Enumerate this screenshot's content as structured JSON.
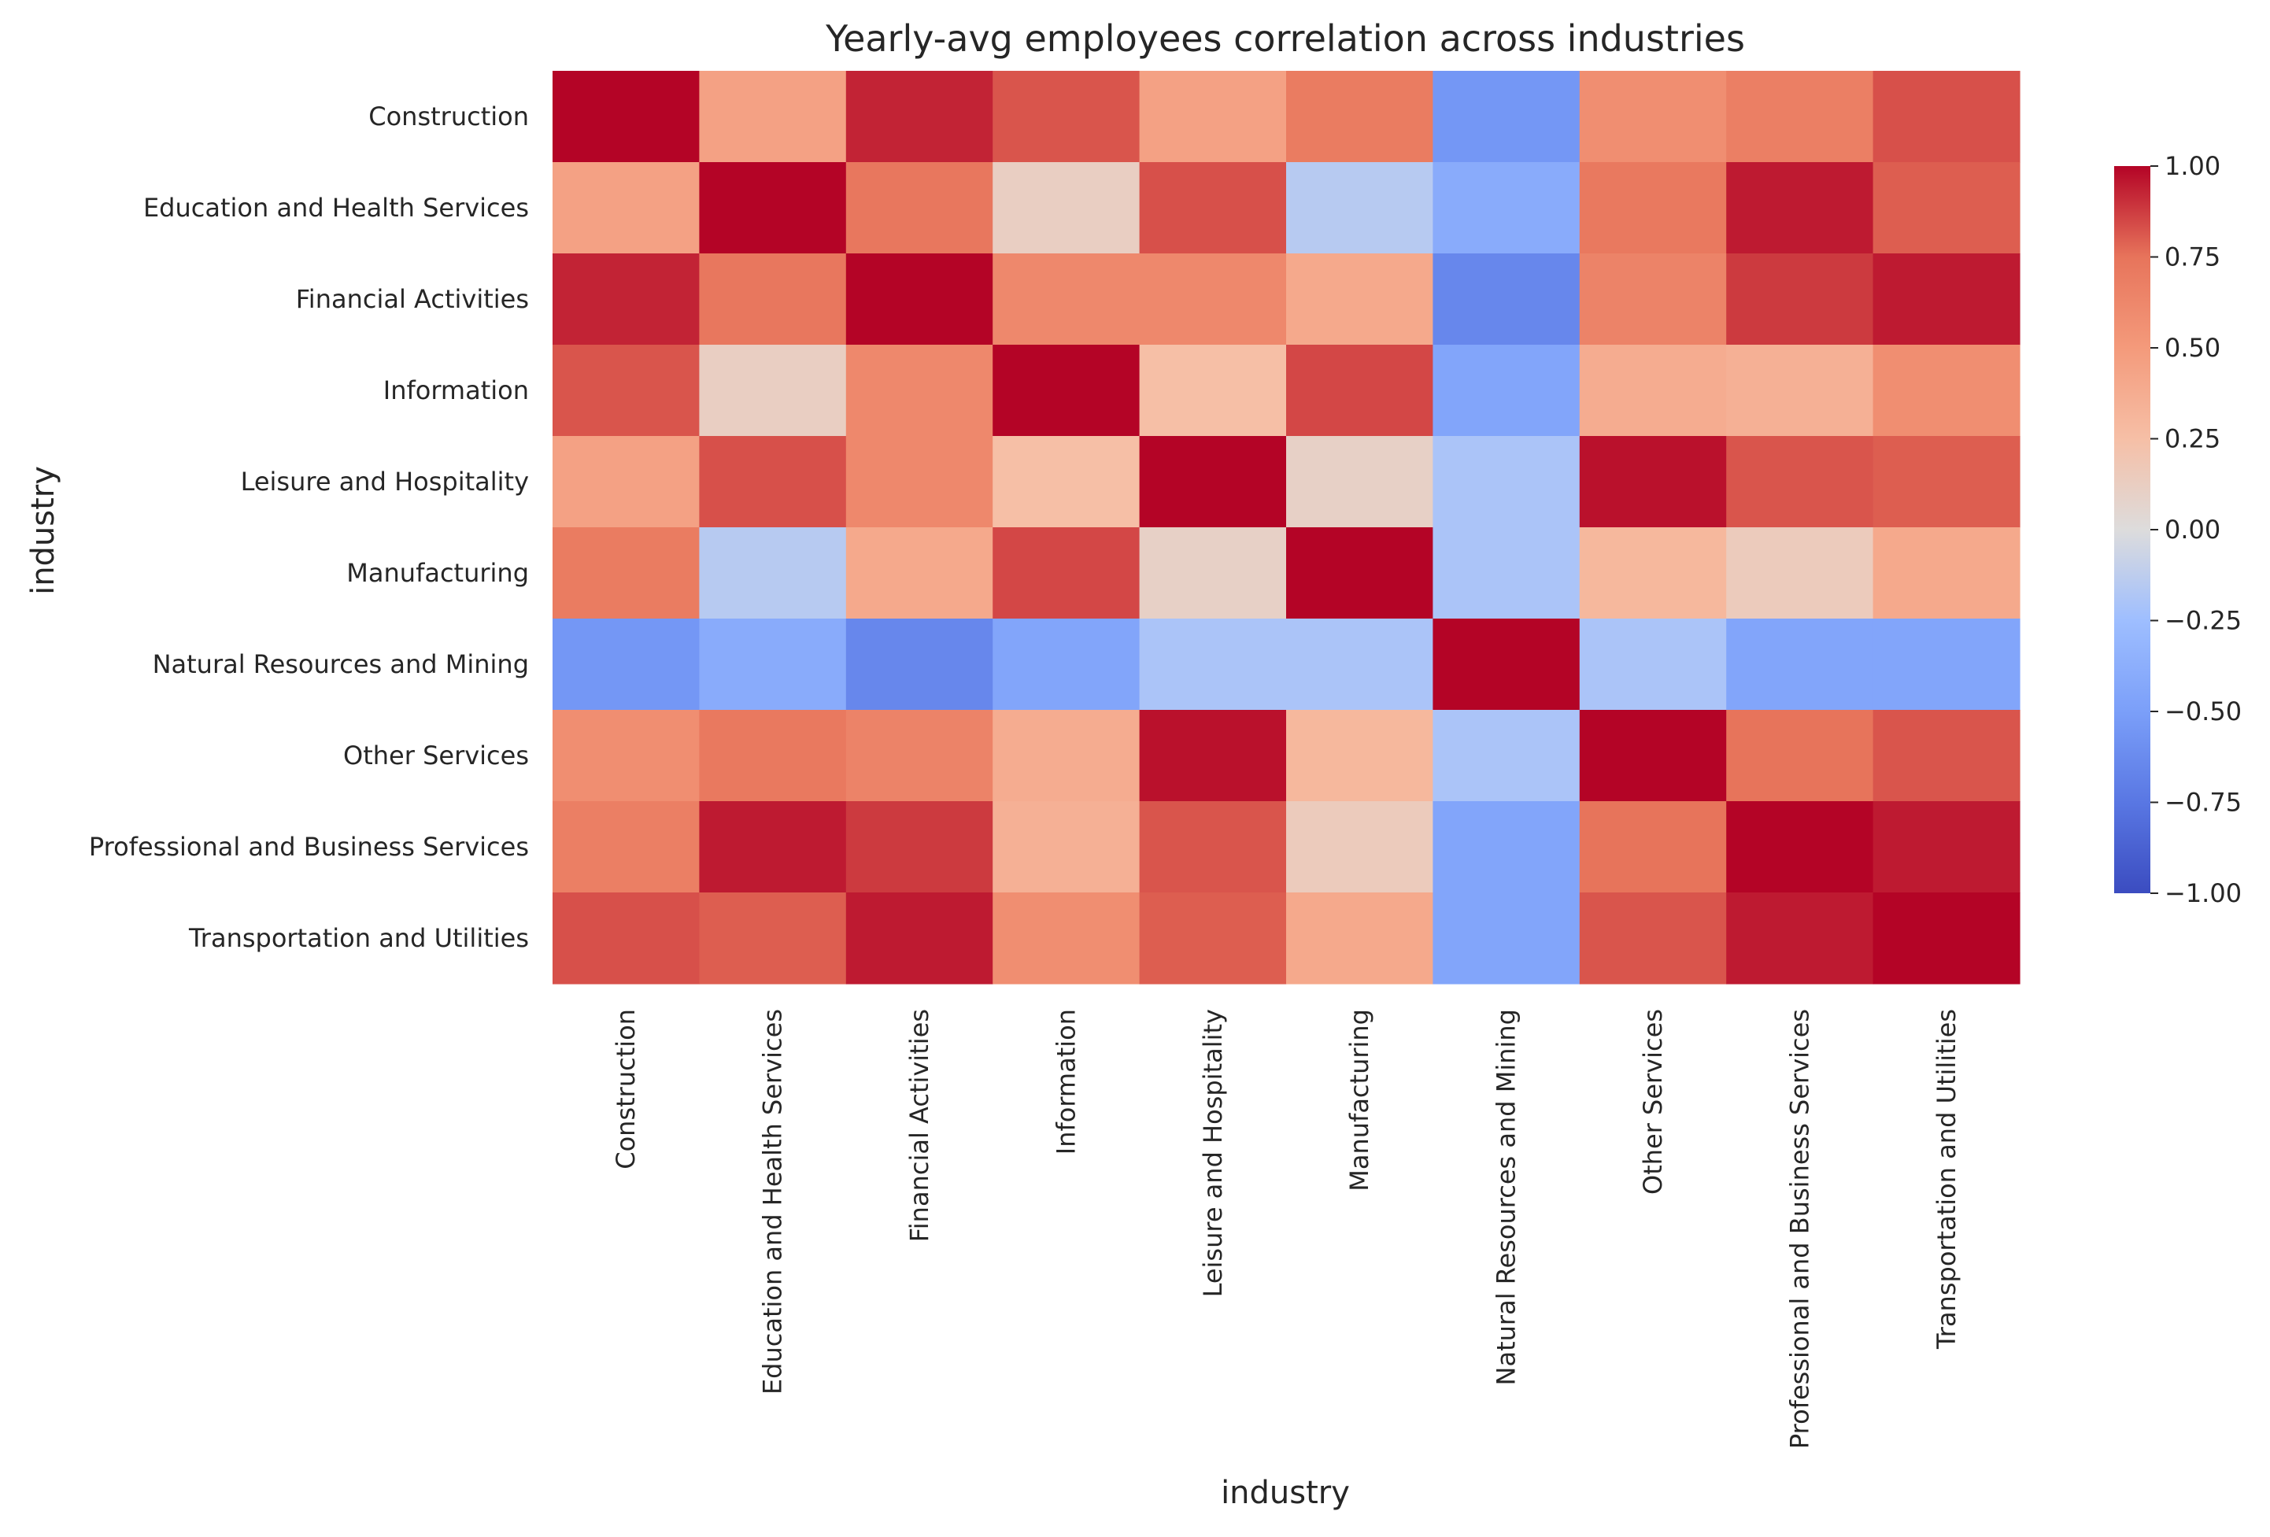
{
  "chart_data": {
    "type": "heatmap",
    "title": "Yearly-avg employees correlation across industries",
    "xlabel": "industry",
    "ylabel": "industry",
    "categories": [
      "Construction",
      "Education and Health Services",
      "Financial Activities",
      "Information",
      "Leisure and Hospitality",
      "Manufacturing",
      "Natural Resources and Mining",
      "Other Services",
      "Professional and Business Services",
      "Transportation and Utilities"
    ],
    "matrix": [
      [
        1.0,
        0.45,
        0.93,
        0.82,
        0.45,
        0.7,
        -0.55,
        0.58,
        0.68,
        0.83
      ],
      [
        0.45,
        1.0,
        0.73,
        0.12,
        0.83,
        -0.15,
        -0.4,
        0.72,
        0.95,
        0.8
      ],
      [
        0.93,
        0.73,
        1.0,
        0.62,
        0.62,
        0.4,
        -0.65,
        0.65,
        0.88,
        0.95
      ],
      [
        0.82,
        0.12,
        0.62,
        1.0,
        0.25,
        0.85,
        -0.45,
        0.38,
        0.35,
        0.58
      ],
      [
        0.45,
        0.83,
        0.62,
        0.25,
        1.0,
        0.1,
        -0.2,
        0.97,
        0.82,
        0.8
      ],
      [
        0.7,
        -0.15,
        0.4,
        0.85,
        0.1,
        1.0,
        -0.2,
        0.3,
        0.15,
        0.4
      ],
      [
        -0.55,
        -0.4,
        -0.65,
        -0.45,
        -0.2,
        -0.2,
        1.0,
        -0.2,
        -0.45,
        -0.45
      ],
      [
        0.58,
        0.72,
        0.65,
        0.38,
        0.97,
        0.3,
        -0.2,
        1.0,
        0.75,
        0.82
      ],
      [
        0.68,
        0.95,
        0.88,
        0.35,
        0.82,
        0.15,
        -0.45,
        0.75,
        1.0,
        0.95
      ],
      [
        0.83,
        0.8,
        0.95,
        0.58,
        0.8,
        0.4,
        -0.45,
        0.82,
        0.95,
        1.0
      ]
    ],
    "colorscale": "coolwarm",
    "vmin": -1.0,
    "vmax": 1.0,
    "colorbar_ticks": [
      "1.00",
      "0.75",
      "0.50",
      "0.25",
      "0.00",
      "−0.25",
      "−0.50",
      "−0.75",
      "−1.00"
    ],
    "colorbar_tick_values": [
      1.0,
      0.75,
      0.5,
      0.25,
      0.0,
      -0.25,
      -0.5,
      -0.75,
      -1.0
    ],
    "grid": false
  }
}
